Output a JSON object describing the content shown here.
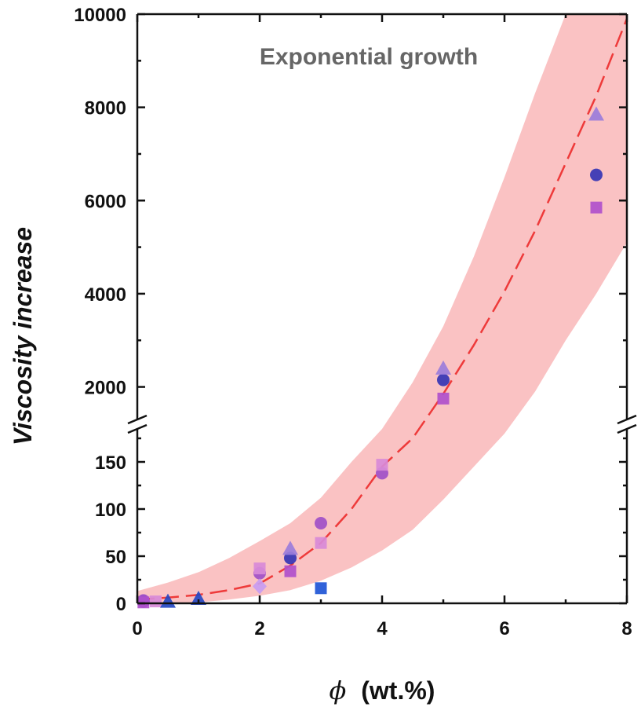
{
  "chart_data": {
    "type": "scatter",
    "title": "",
    "annotation": "Exponential growth",
    "xlabel": "ϕ (wt.%)",
    "ylabel": "Viscosity increase",
    "xlim": [
      0,
      8
    ],
    "x_ticks": [
      "0",
      "2",
      "4",
      "6",
      "8"
    ],
    "y_axis_break": true,
    "y_lower_range": [
      0,
      190
    ],
    "y_upper_range": [
      1200,
      10000
    ],
    "y_lower_ticks": [
      "0",
      "50",
      "100",
      "150"
    ],
    "y_upper_ticks": [
      "2000",
      "4000",
      "6000",
      "8000",
      "10000"
    ],
    "fit": {
      "style": "dashed",
      "color": "#ee3a3a",
      "points": [
        [
          0,
          4
        ],
        [
          0.5,
          6
        ],
        [
          1,
          9
        ],
        [
          1.5,
          14
        ],
        [
          2,
          21
        ],
        [
          2.5,
          40
        ],
        [
          3,
          64
        ],
        [
          3.5,
          100
        ],
        [
          4,
          145
        ],
        [
          4.5,
          900
        ],
        [
          5,
          1850
        ],
        [
          5.5,
          2900
        ],
        [
          6,
          4050
        ],
        [
          6.5,
          5350
        ],
        [
          7,
          6800
        ],
        [
          7.5,
          8250
        ],
        [
          8,
          9900
        ]
      ]
    },
    "band": {
      "color": "#f7a1a3",
      "upper": [
        [
          0,
          13
        ],
        [
          0.5,
          22
        ],
        [
          1,
          33
        ],
        [
          1.5,
          48
        ],
        [
          2,
          66
        ],
        [
          2.5,
          85
        ],
        [
          3,
          112
        ],
        [
          3.5,
          150
        ],
        [
          4,
          185
        ],
        [
          4.5,
          2100
        ],
        [
          5,
          3300
        ],
        [
          5.5,
          4800
        ],
        [
          6,
          6500
        ],
        [
          6.5,
          8300
        ],
        [
          7,
          10000
        ],
        [
          8,
          10000
        ]
      ],
      "lower": [
        [
          0,
          0
        ],
        [
          0.5,
          0
        ],
        [
          1,
          1
        ],
        [
          1.5,
          4
        ],
        [
          2,
          8
        ],
        [
          2.5,
          14
        ],
        [
          3,
          24
        ],
        [
          3.5,
          38
        ],
        [
          4,
          56
        ],
        [
          4.5,
          78
        ],
        [
          5,
          110
        ],
        [
          5.5,
          145
        ],
        [
          6,
          180
        ],
        [
          6.5,
          1900
        ],
        [
          7,
          3000
        ],
        [
          7.5,
          4000
        ],
        [
          8,
          5100
        ]
      ]
    },
    "series": [
      {
        "marker": "circle",
        "color": "#3535b5",
        "points": [
          [
            0.1,
            2
          ],
          [
            2.5,
            48
          ],
          [
            5,
            2150
          ],
          [
            7.5,
            6550
          ]
        ]
      },
      {
        "marker": "circle",
        "color": "#a050c8",
        "points": [
          [
            0.1,
            3
          ],
          [
            2,
            32
          ],
          [
            3,
            85
          ],
          [
            4,
            138
          ]
        ]
      },
      {
        "marker": "square",
        "color": "#b050cc",
        "points": [
          [
            0.1,
            1
          ],
          [
            2.5,
            34
          ],
          [
            5,
            1750
          ],
          [
            7.5,
            5850
          ]
        ]
      },
      {
        "marker": "square",
        "color": "#d88ad8",
        "points": [
          [
            0.3,
            2
          ],
          [
            2,
            37
          ],
          [
            3,
            64
          ],
          [
            4,
            147
          ]
        ]
      },
      {
        "marker": "square",
        "color": "#1e55d6",
        "points": [
          [
            3,
            16
          ]
        ]
      },
      {
        "marker": "triangle",
        "color": "#9b7ddb",
        "points": [
          [
            2.5,
            58
          ],
          [
            5,
            2400
          ],
          [
            7.5,
            7850
          ]
        ]
      },
      {
        "marker": "triangle",
        "color": "#2448c4",
        "points": [
          [
            0.5,
            2
          ],
          [
            1,
            5
          ]
        ]
      },
      {
        "marker": "diamond",
        "color": "#c89cf2",
        "points": [
          [
            2,
            18
          ]
        ]
      }
    ]
  }
}
